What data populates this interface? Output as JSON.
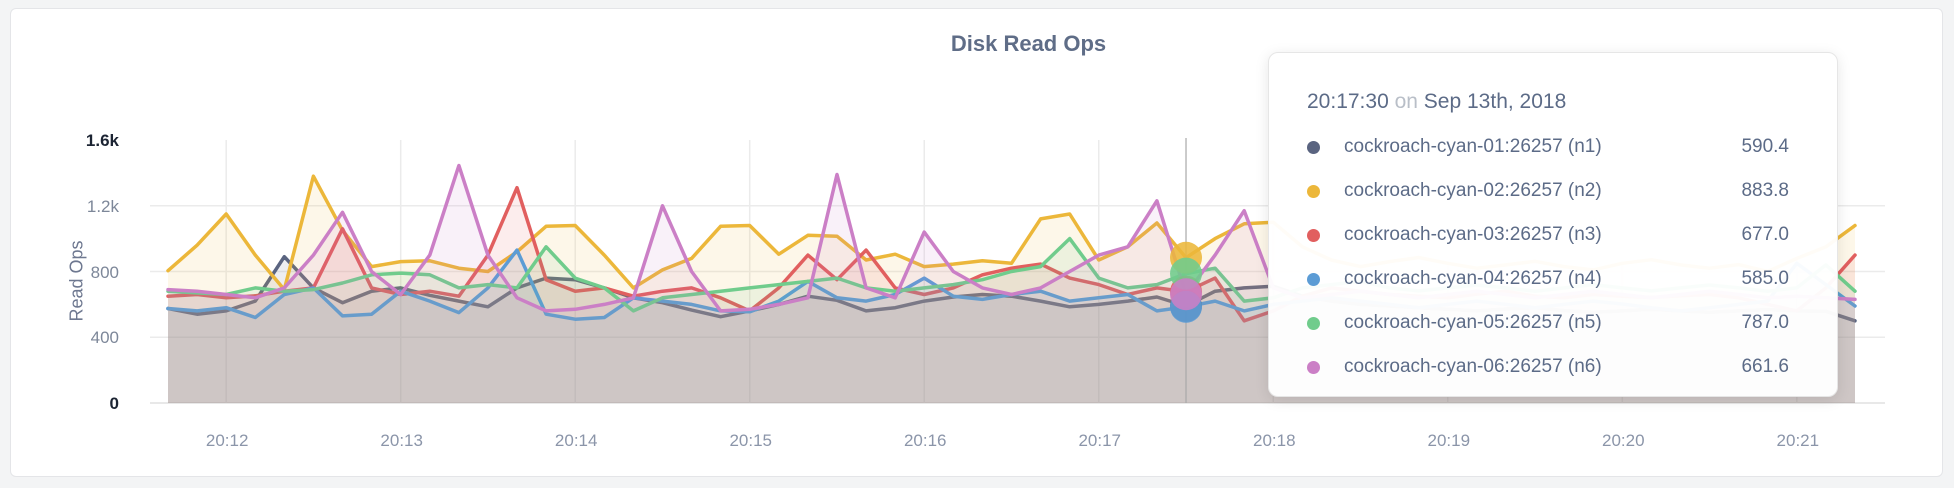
{
  "chart": {
    "title": "Disk Read Ops",
    "y_axis_label": "Read Ops",
    "y_ticks": [
      {
        "label": "0",
        "value": 0,
        "emphasis": true
      },
      {
        "label": "400",
        "value": 400,
        "emphasis": false
      },
      {
        "label": "800",
        "value": 800,
        "emphasis": false
      },
      {
        "label": "1.2k",
        "value": 1200,
        "emphasis": false
      },
      {
        "label": "1.6k",
        "value": 1600,
        "emphasis": true
      }
    ],
    "x_ticks": [
      "20:12",
      "20:13",
      "20:14",
      "20:15",
      "20:16",
      "20:17",
      "20:18",
      "20:19",
      "20:20",
      "20:21"
    ]
  },
  "chart_data": {
    "type": "line",
    "title": "Disk Read Ops",
    "xlabel": "",
    "ylabel": "Read Ops",
    "ylim": [
      0,
      1600
    ],
    "grid": true,
    "legend_position": "tooltip",
    "x_start_time": "20:11:40",
    "x_interval_seconds": 10,
    "x_tick_labels": [
      "20:12",
      "20:13",
      "20:14",
      "20:15",
      "20:16",
      "20:17",
      "20:18",
      "20:19",
      "20:20",
      "20:21"
    ],
    "hover_index": 35,
    "hover_time": "20:17:30",
    "series": [
      {
        "name": "cockroach-cyan-01:26257 (n1)",
        "color": "#5a6480",
        "values": [
          575,
          540,
          560,
          620,
          890,
          700,
          610,
          680,
          700,
          655,
          620,
          585,
          700,
          760,
          750,
          700,
          640,
          610,
          565,
          525,
          560,
          600,
          650,
          625,
          560,
          580,
          620,
          645,
          660,
          650,
          620,
          585,
          600,
          620,
          645,
          590.4,
          680,
          700,
          710,
          650,
          620,
          600,
          590,
          580,
          570,
          560,
          572,
          580,
          562,
          552,
          560,
          570,
          560,
          552,
          560,
          568,
          560,
          558,
          500
        ]
      },
      {
        "name": "cockroach-cyan-02:26257 (n2)",
        "color": "#ecb73a",
        "values": [
          805,
          960,
          1150,
          900,
          690,
          1380,
          1050,
          830,
          860,
          865,
          820,
          800,
          920,
          1075,
          1080,
          900,
          700,
          810,
          880,
          1075,
          1080,
          905,
          1020,
          1015,
          870,
          905,
          830,
          845,
          865,
          850,
          1120,
          1150,
          870,
          950,
          1095,
          883.8,
          1000,
          1090,
          1100,
          950,
          870,
          830,
          860,
          885,
          850,
          820,
          840,
          862,
          830,
          810,
          850,
          872,
          840,
          820,
          842,
          800,
          880,
          950,
          1080
        ]
      },
      {
        "name": "cockroach-cyan-03:26257 (n3)",
        "color": "#e15f5f",
        "values": [
          650,
          660,
          640,
          652,
          680,
          700,
          1060,
          700,
          660,
          680,
          650,
          900,
          1310,
          750,
          680,
          700,
          650,
          680,
          700,
          640,
          560,
          700,
          900,
          750,
          930,
          700,
          660,
          700,
          780,
          820,
          845,
          760,
          720,
          660,
          700,
          677,
          760,
          500,
          560,
          650,
          700,
          680,
          660,
          650,
          640,
          662,
          680,
          650,
          640,
          660,
          650,
          642,
          652,
          660,
          640,
          600,
          560,
          700,
          900
        ]
      },
      {
        "name": "cockroach-cyan-04:26257 (n4)",
        "color": "#5c9cd5",
        "values": [
          575,
          560,
          580,
          520,
          660,
          700,
          530,
          540,
          680,
          620,
          550,
          700,
          930,
          540,
          510,
          520,
          640,
          620,
          600,
          560,
          555,
          620,
          740,
          640,
          620,
          660,
          760,
          650,
          630,
          660,
          680,
          620,
          640,
          660,
          560,
          585,
          620,
          560,
          600,
          620,
          640,
          620,
          600,
          580,
          600,
          620,
          600,
          580,
          600,
          620,
          602,
          580,
          560,
          580,
          600,
          620,
          850,
          720,
          590
        ]
      },
      {
        "name": "cockroach-cyan-05:26257 (n5)",
        "color": "#70cc8c",
        "values": [
          680,
          670,
          660,
          700,
          680,
          690,
          730,
          780,
          790,
          780,
          700,
          720,
          700,
          950,
          760,
          700,
          560,
          640,
          660,
          680,
          700,
          720,
          740,
          760,
          700,
          680,
          700,
          720,
          750,
          800,
          830,
          1000,
          760,
          700,
          720,
          787,
          820,
          620,
          640,
          700,
          720,
          740,
          700,
          682,
          700,
          718,
          700,
          680,
          700,
          720,
          700,
          682,
          700,
          718,
          700,
          680,
          700,
          840,
          680
        ]
      },
      {
        "name": "cockroach-cyan-06:26257 (n6)",
        "color": "#cb7fc6",
        "values": [
          690,
          680,
          660,
          640,
          700,
          900,
          1160,
          800,
          660,
          900,
          1445,
          900,
          640,
          560,
          570,
          600,
          640,
          1200,
          800,
          560,
          570,
          600,
          640,
          1390,
          700,
          640,
          1040,
          800,
          700,
          660,
          700,
          800,
          900,
          950,
          1230,
          661.6,
          900,
          1170,
          700,
          640,
          660,
          680,
          660,
          640,
          660,
          680,
          660,
          640,
          660,
          680,
          660,
          640,
          660,
          680,
          660,
          640,
          650,
          640,
          630
        ]
      }
    ]
  },
  "tooltip": {
    "time": "20:17:30",
    "preposition": "on",
    "date": "Sep 13th, 2018",
    "rows": [
      {
        "name": "cockroach-cyan-01:26257 (n1)",
        "value": "590.4",
        "color": "#5a6480"
      },
      {
        "name": "cockroach-cyan-02:26257 (n2)",
        "value": "883.8",
        "color": "#ecb73a"
      },
      {
        "name": "cockroach-cyan-03:26257 (n3)",
        "value": "677.0",
        "color": "#e15f5f"
      },
      {
        "name": "cockroach-cyan-04:26257 (n4)",
        "value": "585.0",
        "color": "#5c9cd5"
      },
      {
        "name": "cockroach-cyan-05:26257 (n5)",
        "value": "787.0",
        "color": "#70cc8c"
      },
      {
        "name": "cockroach-cyan-06:26257 (n6)",
        "value": "661.6",
        "color": "#cb7fc6"
      }
    ]
  },
  "colors": {
    "grid": "#ebebeb",
    "baseline": "#e0e0e0",
    "hover_line": "#a9a9a9",
    "title_text": "#5f6d87",
    "axis_text": "#8b95a9"
  }
}
